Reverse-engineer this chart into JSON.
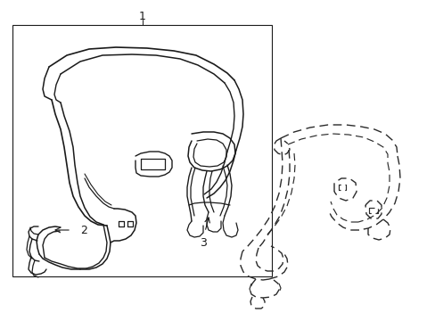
{
  "background_color": "#ffffff",
  "line_color": "#1a1a1a",
  "label_1": "1",
  "label_2": "2",
  "label_3": "3",
  "figsize": [
    4.89,
    3.6
  ],
  "dpi": 100
}
